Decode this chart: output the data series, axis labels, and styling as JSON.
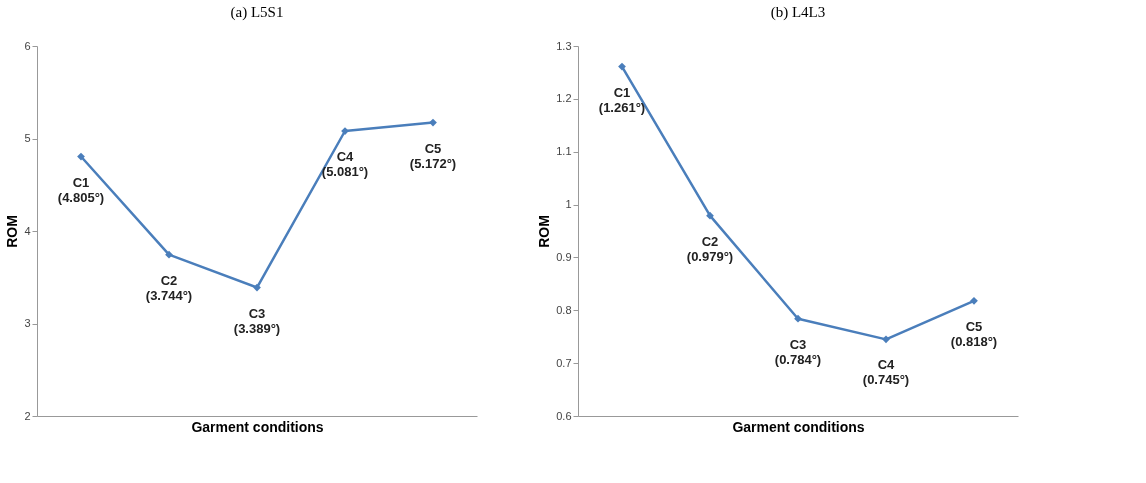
{
  "chart_data": [
    {
      "type": "line",
      "title": "(a) L5S1",
      "xlabel": "Garment conditions",
      "ylabel": "ROM",
      "categories": [
        null,
        null,
        null,
        null,
        null
      ],
      "values": [
        4.805,
        3.744,
        3.389,
        5.081,
        5.172
      ],
      "value_labels": [
        "C1\n(4.805°)",
        "C2\n(3.744°)",
        "C3\n(3.389°)",
        "C4\n(5.081°)",
        "C5\n(5.172°)"
      ],
      "color": "#4a7ebb",
      "ylim": [
        2,
        6
      ],
      "yticks": [
        2,
        3,
        4,
        5,
        6
      ],
      "grid": false,
      "marker": "diamond",
      "line_style": "solid",
      "tick_labels": "y"
    },
    {
      "type": "line",
      "title": "(b) L4L3",
      "xlabel": "Garment conditions",
      "ylabel": "ROM",
      "categories": [
        null,
        null,
        null,
        null,
        null
      ],
      "values": [
        1.261,
        0.979,
        0.784,
        0.745,
        0.818
      ],
      "value_labels": [
        "C1\n(1.261°)",
        "C2\n(0.979°)",
        "C3\n(0.784°)",
        "C4\n(0.745°)",
        "C5\n(0.818°)"
      ],
      "color": "#4a7ebb",
      "ylim": [
        0.6,
        1.3
      ],
      "yticks": [
        0.6,
        0.7,
        0.8,
        0.9,
        1,
        1.1,
        1.2,
        1.3
      ],
      "grid": false,
      "marker": "diamond",
      "line_style": "solid",
      "tick_labels": "y"
    }
  ]
}
